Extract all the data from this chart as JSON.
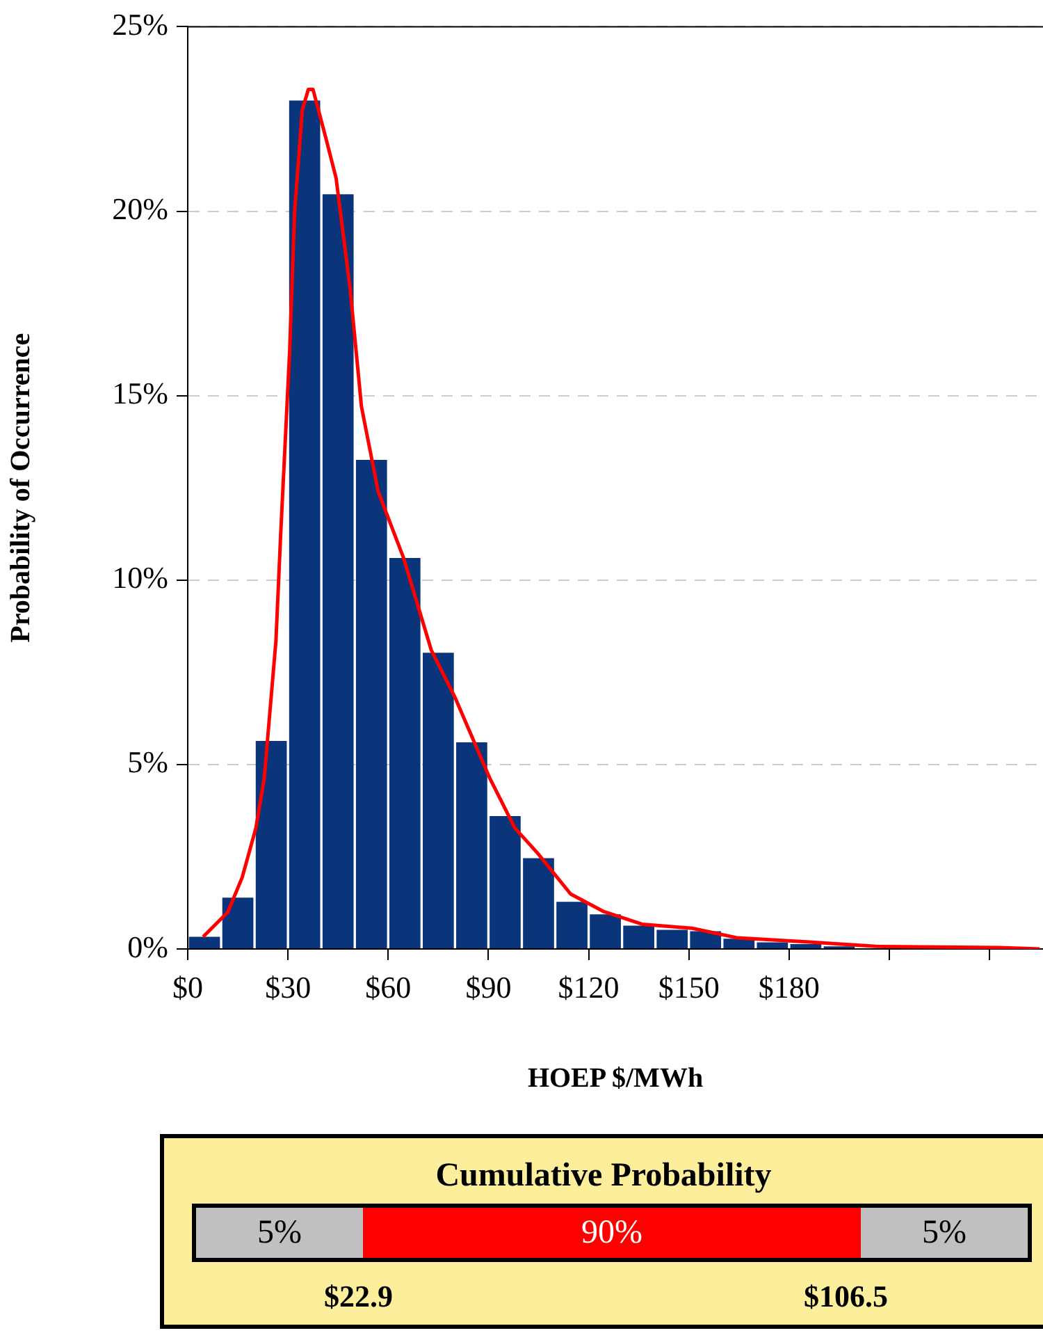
{
  "chart_data": [
    {
      "type": "histogram",
      "xlabel": "HOEP $/MWh",
      "ylabel": "Probability of Occurrence",
      "bins": [
        0,
        10,
        20,
        30,
        40,
        50,
        60,
        70,
        80,
        90,
        100,
        110,
        120,
        130,
        140,
        150,
        160,
        170,
        180,
        190,
        200
      ],
      "values": [
        0.33,
        1.39,
        5.64,
        23,
        20.46,
        13.26,
        10.6,
        8.03,
        5.6,
        3.6,
        2.46,
        1.28,
        0.94,
        0.63,
        0.52,
        0.48,
        0.28,
        0.18,
        0.13,
        0.07
      ],
      "color": "#0a357a",
      "series": [
        {
          "type": "line",
          "color": "#ff0000",
          "x": [
            4.6,
            12,
            16.3,
            20.4,
            22.9,
            26.4,
            27.8,
            30.5,
            32,
            34.3,
            36.1,
            37.5,
            41,
            44.4,
            48.6,
            52,
            57,
            64.6,
            72.9,
            79.9,
            90.4,
            97.9,
            104.6,
            114.6,
            124.6,
            136,
            151,
            164.6,
            186,
            206,
            243,
            255
          ],
          "values": [
            0.33,
            1,
            1.94,
            3.28,
            4.63,
            8.35,
            11.2,
            16.2,
            20,
            22.75,
            23.3,
            23.3,
            22.1,
            20.9,
            17.9,
            14.7,
            12.4,
            10.6,
            8.1,
            6.84,
            4.63,
            3.28,
            2.61,
            1.49,
            1.01,
            0.67,
            0.56,
            0.3,
            0.19,
            0.07,
            0.04,
            0
          ]
        }
      ],
      "xlim": [
        0,
        256
      ],
      "xticks": [
        {
          "value": 0,
          "label": "$0"
        },
        {
          "value": 30,
          "label": "$30"
        },
        {
          "value": 60,
          "label": "$60"
        },
        {
          "value": 90,
          "label": "$90"
        },
        {
          "value": 120,
          "label": "$120"
        },
        {
          "value": 150,
          "label": "$150"
        },
        {
          "value": 180,
          "label": "$180"
        },
        {
          "value": 210,
          "label": null
        },
        {
          "value": 240,
          "label": null
        }
      ],
      "ylim": [
        0,
        25
      ],
      "yticks": [
        {
          "value": 0,
          "label": "0%"
        },
        {
          "value": 5,
          "label": "5%"
        },
        {
          "value": 10,
          "label": "10%"
        },
        {
          "value": 15,
          "label": "15%"
        },
        {
          "value": 20,
          "label": "20%"
        },
        {
          "value": 25,
          "label": "25%"
        }
      ],
      "grid": "y",
      "legend": false,
      "marker": "none",
      "line_style": "solid"
    },
    {
      "type": "other",
      "title": "Cumulative Probability",
      "categories": [
        "5%",
        "90%",
        "5%"
      ],
      "colors": [
        "#c0c0c0",
        "#ff0000",
        "#c0c0c0"
      ],
      "annotations": [
        "$22.9",
        "$106.5"
      ]
    }
  ]
}
